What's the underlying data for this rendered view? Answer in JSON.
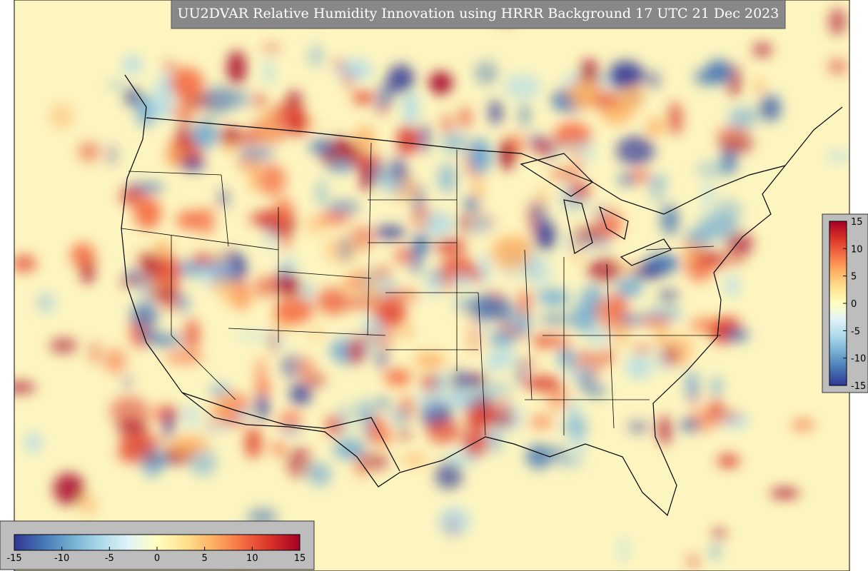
{
  "title": "UU2DVAR Relative Humidity Innovation using HRRR Background 17 UTC 21 Dec 2023",
  "colormap": [
    "#313695",
    "#4575b4",
    "#74add1",
    "#abd9e9",
    "#e0f3f8",
    "#ffffbf",
    "#fee090",
    "#fdae61",
    "#f46d43",
    "#d73027",
    "#a50026"
  ],
  "colorbars": [
    {
      "orientation": "horizontal",
      "lim": [
        -15,
        15
      ],
      "ticks": [
        -15,
        -10,
        -5,
        0,
        5,
        10,
        15
      ]
    },
    {
      "orientation": "vertical",
      "lim": [
        -15,
        15
      ],
      "ticks": [
        -15,
        -10,
        -5,
        0,
        5,
        10,
        15
      ]
    }
  ]
}
